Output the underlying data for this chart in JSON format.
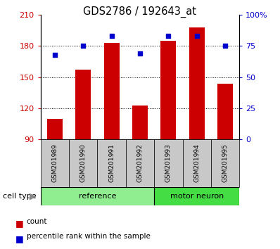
{
  "title": "GDS2786 / 192643_at",
  "categories": [
    "GSM201989",
    "GSM201990",
    "GSM201991",
    "GSM201992",
    "GSM201993",
    "GSM201994",
    "GSM201995"
  ],
  "bar_values": [
    110,
    157,
    183,
    123,
    185,
    198,
    144
  ],
  "scatter_values": [
    68,
    75,
    83,
    69,
    83,
    83,
    75
  ],
  "bar_bottom": 90,
  "ylim_left": [
    90,
    210
  ],
  "ylim_right": [
    0,
    100
  ],
  "yticks_left": [
    90,
    120,
    150,
    180,
    210
  ],
  "yticks_right": [
    0,
    25,
    50,
    75,
    100
  ],
  "grid_values": [
    120,
    150,
    180
  ],
  "bar_color": "#cc0000",
  "scatter_color": "#0000cc",
  "groups": [
    {
      "label": "reference",
      "indices": [
        0,
        1,
        2,
        3
      ],
      "color": "#90ee90"
    },
    {
      "label": "motor neuron",
      "indices": [
        4,
        5,
        6
      ],
      "color": "#44dd44"
    }
  ],
  "cell_type_label": "cell type",
  "legend_items": [
    {
      "label": "count",
      "color": "#cc0000"
    },
    {
      "label": "percentile rank within the sample",
      "color": "#0000cc"
    }
  ],
  "background_color": "#ffffff",
  "tick_area_color": "#c8c8c8",
  "left_ytick_color": "#cc0000",
  "right_ytick_color": "#0000cc"
}
